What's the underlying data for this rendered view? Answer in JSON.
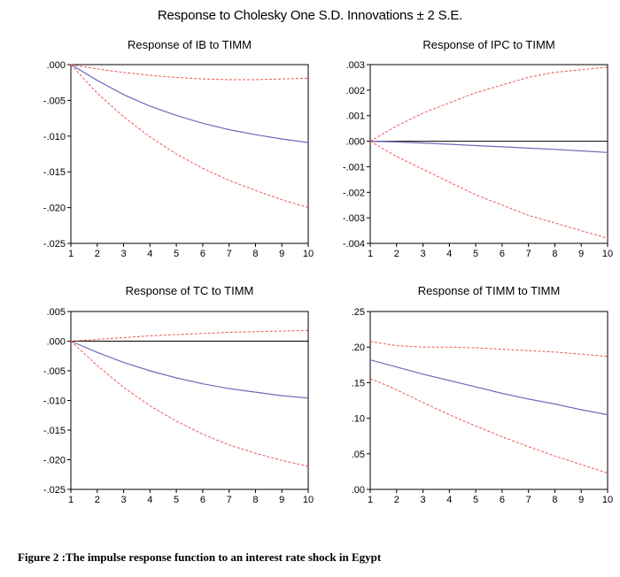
{
  "figure": {
    "title": "Response to Cholesky One S.D. Innovations ± 2 S.E.",
    "caption": "Figure 2 :The impulse response function to an interest rate  shock in Egypt"
  },
  "colors": {
    "response": "#6c6cb8",
    "band": "#ee5555",
    "zero_line": "#000000"
  },
  "chart_data": [
    {
      "type": "line",
      "title": "Response of IB to TIMM",
      "x": [
        1,
        2,
        3,
        4,
        5,
        6,
        7,
        8,
        9,
        10
      ],
      "xticks": [
        "1",
        "2",
        "3",
        "4",
        "5",
        "6",
        "7",
        "8",
        "9",
        "10"
      ],
      "ylim": [
        -0.025,
        0.0
      ],
      "yticks": [
        0.0,
        -0.005,
        -0.01,
        -0.015,
        -0.02,
        -0.025
      ],
      "ytick_labels": [
        ".000",
        "-.005",
        "-.010",
        "-.015",
        "-.020",
        "-.025"
      ],
      "zero_line": false,
      "series": [
        {
          "role": "response",
          "values": [
            0.0,
            -0.0022,
            -0.0042,
            -0.0058,
            -0.0071,
            -0.0082,
            -0.0091,
            -0.0098,
            -0.0104,
            -0.0109
          ]
        },
        {
          "role": "upper",
          "values": [
            0.0,
            -0.0006,
            -0.0011,
            -0.0015,
            -0.0018,
            -0.002,
            -0.0021,
            -0.0021,
            -0.002,
            -0.0019
          ]
        },
        {
          "role": "lower",
          "values": [
            0.0,
            -0.004,
            -0.0073,
            -0.0101,
            -0.0125,
            -0.0145,
            -0.0162,
            -0.0176,
            -0.0189,
            -0.02
          ]
        }
      ]
    },
    {
      "type": "line",
      "title": "Response of IPC to TIMM",
      "x": [
        1,
        2,
        3,
        4,
        5,
        6,
        7,
        8,
        9,
        10
      ],
      "xticks": [
        "1",
        "2",
        "3",
        "4",
        "5",
        "6",
        "7",
        "8",
        "9",
        "10"
      ],
      "ylim": [
        -0.004,
        0.003
      ],
      "yticks": [
        0.003,
        0.002,
        0.001,
        0.0,
        -0.001,
        -0.002,
        -0.003,
        -0.004
      ],
      "ytick_labels": [
        ".003",
        ".002",
        ".001",
        ".000",
        "-.001",
        "-.002",
        "-.003",
        "-.004"
      ],
      "zero_line": true,
      "series": [
        {
          "role": "response",
          "values": [
            0.0,
            -3e-05,
            -7e-05,
            -0.00012,
            -0.00017,
            -0.00022,
            -0.00027,
            -0.00032,
            -0.00038,
            -0.00044
          ]
        },
        {
          "role": "upper",
          "values": [
            0.0,
            0.0006,
            0.0011,
            0.0015,
            0.0019,
            0.0022,
            0.0025,
            0.0027,
            0.0028,
            0.0029
          ]
        },
        {
          "role": "lower",
          "values": [
            0.0,
            -0.0006,
            -0.0011,
            -0.0016,
            -0.0021,
            -0.0025,
            -0.0029,
            -0.0032,
            -0.0035,
            -0.0038
          ]
        }
      ]
    },
    {
      "type": "line",
      "title": "Response of TC to TIMM",
      "x": [
        1,
        2,
        3,
        4,
        5,
        6,
        7,
        8,
        9,
        10
      ],
      "xticks": [
        "1",
        "2",
        "3",
        "4",
        "5",
        "6",
        "7",
        "8",
        "9",
        "10"
      ],
      "ylim": [
        -0.025,
        0.005
      ],
      "yticks": [
        0.005,
        0.0,
        -0.005,
        -0.01,
        -0.015,
        -0.02,
        -0.025
      ],
      "ytick_labels": [
        ".005",
        ".000",
        "-.005",
        "-.010",
        "-.015",
        "-.020",
        "-.025"
      ],
      "zero_line": true,
      "series": [
        {
          "role": "response",
          "values": [
            0.0,
            -0.0019,
            -0.0036,
            -0.005,
            -0.0062,
            -0.0072,
            -0.008,
            -0.0086,
            -0.0092,
            -0.0096
          ]
        },
        {
          "role": "upper",
          "values": [
            0.0,
            0.0003,
            0.0006,
            0.0009,
            0.0011,
            0.0013,
            0.0015,
            0.0016,
            0.0017,
            0.0018
          ]
        },
        {
          "role": "lower",
          "values": [
            0.0,
            -0.0041,
            -0.0078,
            -0.0109,
            -0.0135,
            -0.0157,
            -0.0175,
            -0.0189,
            -0.0201,
            -0.0211
          ]
        }
      ]
    },
    {
      "type": "line",
      "title": "Response of TIMM to TIMM",
      "x": [
        1,
        2,
        3,
        4,
        5,
        6,
        7,
        8,
        9,
        10
      ],
      "xticks": [
        "1",
        "2",
        "3",
        "4",
        "5",
        "6",
        "7",
        "8",
        "9",
        "10"
      ],
      "ylim": [
        0.0,
        0.25
      ],
      "yticks": [
        0.25,
        0.2,
        0.15,
        0.1,
        0.05,
        0.0
      ],
      "ytick_labels": [
        ".25",
        ".20",
        ".15",
        ".10",
        ".05",
        ".00"
      ],
      "zero_line": false,
      "series": [
        {
          "role": "response",
          "values": [
            0.182,
            0.172,
            0.162,
            0.153,
            0.144,
            0.135,
            0.127,
            0.12,
            0.112,
            0.105
          ]
        },
        {
          "role": "upper",
          "values": [
            0.208,
            0.202,
            0.2,
            0.2,
            0.199,
            0.197,
            0.195,
            0.193,
            0.19,
            0.187
          ]
        },
        {
          "role": "lower",
          "values": [
            0.156,
            0.14,
            0.122,
            0.105,
            0.089,
            0.074,
            0.06,
            0.047,
            0.035,
            0.023
          ]
        }
      ]
    }
  ]
}
